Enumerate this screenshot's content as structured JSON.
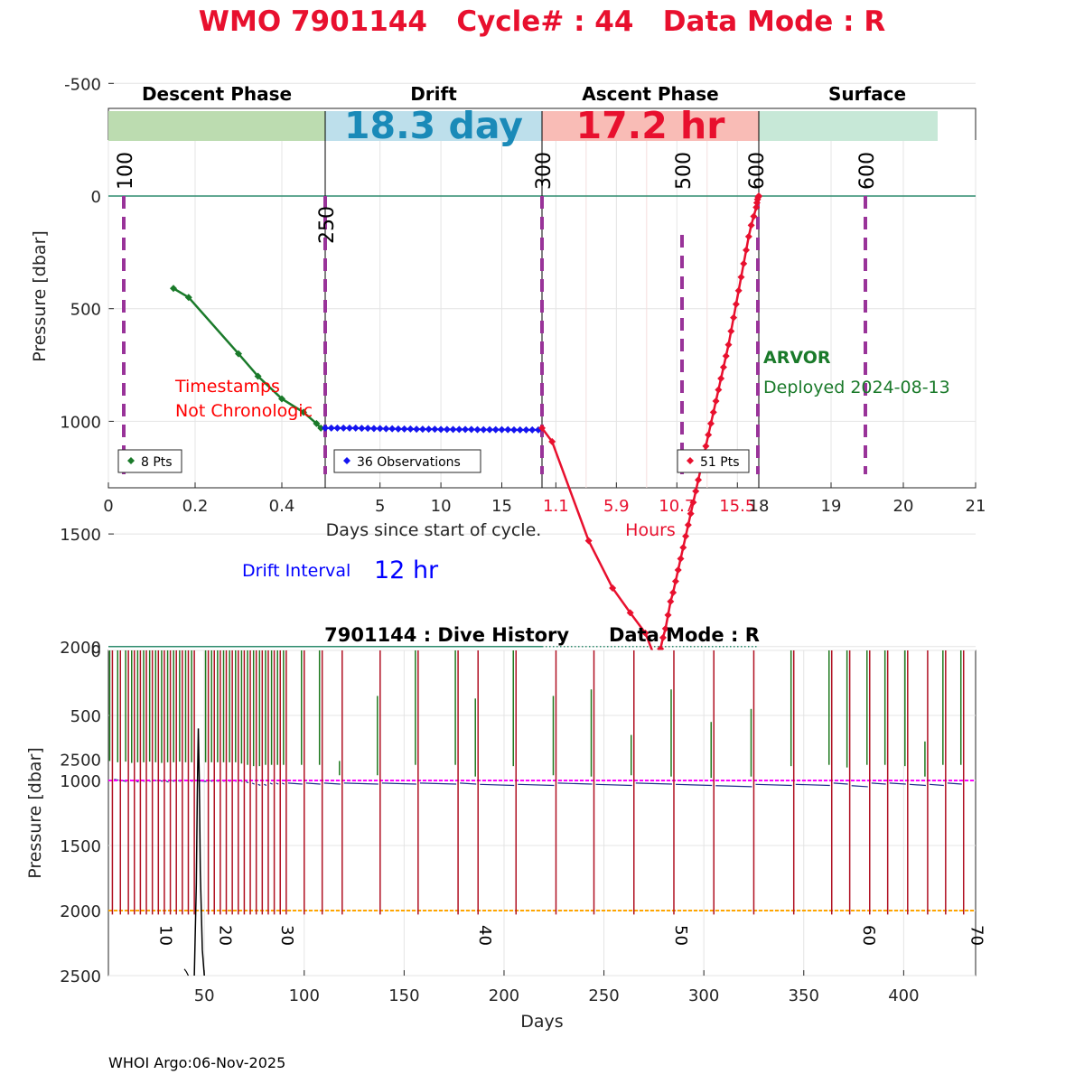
{
  "header": {
    "title": "WMO 7901144   Cycle# : 44   Data Mode : R",
    "title_color": "#e8102e"
  },
  "footer": {
    "credit": "WHOI Argo:06-Nov-2025"
  },
  "chart_data": [
    {
      "type": "line",
      "name": "cycle-profile",
      "ylabel": "Pressure [dbar]",
      "ylim": [
        2600,
        -750
      ],
      "yticks": [
        "-500",
        "0",
        "500",
        "1000",
        "1500",
        "2000",
        "2500"
      ],
      "ytick_values": [
        -500,
        0,
        500,
        1000,
        1500,
        2000,
        2500
      ],
      "grid": true,
      "xlabel_days": "Days since start of cycle.",
      "xlabel_hours": "Hours",
      "hours_color": "#e8102e",
      "phases": [
        {
          "label": "Descent Phase",
          "color": "#bcdcb0",
          "info": ""
        },
        {
          "label": "Drift",
          "color": "#bddfeb",
          "info": "18.3 day",
          "info_color": "#1a8ab8"
        },
        {
          "label": "Ascent Phase",
          "color": "#f9bcb6",
          "info": "17.2 hr",
          "info_color": "#e8102e"
        },
        {
          "label": "Surface",
          "color": "#c7e8d7",
          "info": ""
        }
      ],
      "xticks": {
        "descent": [
          "0",
          "0.2",
          "0.4"
        ],
        "drift": [
          "5",
          "10",
          "15"
        ],
        "ascent_hours": [
          "1.1",
          "5.9",
          "10.7",
          "15.5"
        ],
        "surface": [
          "18",
          "19",
          "20",
          "21"
        ]
      },
      "dashed_markers": [
        "100",
        "250",
        "300",
        "500",
        "600",
        "600"
      ],
      "reference_lines": [
        0,
        2000
      ],
      "descent": {
        "color": "#1a7a2a",
        "legend": "8 Pts",
        "x_days": [
          0.15,
          0.185,
          0.3,
          0.345,
          0.4,
          0.45,
          0.48,
          0.49
        ],
        "pressure": [
          410,
          450,
          700,
          800,
          900,
          960,
          1010,
          1030
        ]
      },
      "drift": {
        "color": "#1414f0",
        "legend": "36 Observations",
        "x_days_start": 0.5,
        "x_days_step": 0.5,
        "pressure": [
          1030,
          1030,
          1030,
          1030,
          1030,
          1030,
          1031,
          1031,
          1032,
          1032,
          1033,
          1033,
          1034,
          1034,
          1034,
          1035,
          1035,
          1035,
          1035,
          1036,
          1036,
          1036,
          1036,
          1036,
          1036,
          1037,
          1037,
          1037,
          1037,
          1037,
          1037,
          1038,
          1038,
          1038,
          1038,
          1038
        ]
      },
      "ascent": {
        "color": "#e8102e",
        "legend": "51 Pts",
        "hours": [
          0,
          0.8,
          3.7,
          5.6,
          7.0,
          8.2,
          8.9,
          9.2,
          9.4,
          9.6,
          9.8,
          10.0,
          10.2,
          10.4,
          10.6,
          10.8,
          11.0,
          11.2,
          11.4,
          11.6,
          11.8,
          12.0,
          12.2,
          12.4,
          12.6,
          12.8,
          13.0,
          13.2,
          13.4,
          13.6,
          13.8,
          14.0,
          14.2,
          14.4,
          14.6,
          14.8,
          15.0,
          15.2,
          15.4,
          15.6,
          15.8,
          16.0,
          16.2,
          16.4,
          16.6,
          16.8,
          17.0,
          17.05,
          17.1,
          17.15,
          17.2
        ],
        "pressure": [
          1030,
          1090,
          1530,
          1740,
          1850,
          1940,
          2040,
          2030,
          2010,
          1960,
          1920,
          1860,
          1800,
          1760,
          1710,
          1660,
          1610,
          1560,
          1510,
          1460,
          1410,
          1360,
          1310,
          1260,
          1210,
          1160,
          1110,
          1060,
          1010,
          960,
          910,
          860,
          810,
          760,
          710,
          660,
          600,
          540,
          480,
          420,
          360,
          300,
          240,
          180,
          130,
          90,
          50,
          30,
          15,
          5,
          0
        ]
      },
      "float_type": "ARVOR",
      "deployed": "Deployed 2024-08-13",
      "warning": [
        "Timestamps",
        "Not Chronologic"
      ],
      "drift_interval_label": "Drift Interval",
      "drift_interval_value": "12 hr"
    },
    {
      "type": "line",
      "name": "dive-history",
      "title": "7901144 : Dive History      Data Mode : R",
      "xlabel": "Days",
      "ylabel": "Pressure [dbar]",
      "xlim": [
        2,
        436
      ],
      "ylim": [
        2500,
        0
      ],
      "xticks": [
        50,
        100,
        150,
        200,
        250,
        300,
        350,
        400
      ],
      "yticks": [
        0,
        500,
        1000,
        1500,
        2000,
        2500
      ],
      "grid": true,
      "park_pressure": 1000,
      "park_color": "#ff00ff",
      "profile_pressure": 2000,
      "profile_color": "#ffa500",
      "profile_line_color": "#b01022",
      "descent_line_color": "#1f7a1f",
      "cycle_labels": [
        {
          "label": "10",
          "day": 27
        },
        {
          "label": "20",
          "day": 57
        },
        {
          "label": "30",
          "day": 88
        },
        {
          "label": "40",
          "day": 187
        },
        {
          "label": "50",
          "day": 285
        },
        {
          "label": "60",
          "day": 379
        },
        {
          "label": "70",
          "day": 433
        }
      ],
      "cycle_days": [
        4,
        8,
        12,
        15,
        18,
        21,
        24,
        27,
        30,
        33,
        36,
        39,
        42,
        45,
        52,
        55,
        58,
        61,
        64,
        67,
        70,
        73,
        76,
        79,
        82,
        85,
        88,
        91,
        100,
        109,
        119,
        138,
        157,
        177,
        187,
        206,
        226,
        245,
        265,
        285,
        305,
        325,
        345,
        364,
        373,
        383,
        392,
        402,
        412,
        421,
        430
      ],
      "descent_tops": [
        0,
        0,
        0,
        0,
        0,
        0,
        0,
        0,
        0,
        0,
        0,
        0,
        0,
        0,
        0,
        0,
        0,
        0,
        0,
        0,
        0,
        0,
        0,
        0,
        0,
        0,
        0,
        0,
        0,
        0,
        850,
        350,
        0,
        0,
        370,
        0,
        350,
        300,
        650,
        300,
        550,
        450,
        0,
        0,
        0,
        0,
        0,
        0,
        700,
        0,
        0
      ],
      "drift_pressures": [
        990,
        1000,
        995,
        1005,
        1000,
        1000,
        995,
        1000,
        1005,
        1000,
        1000,
        995,
        1000,
        1000,
        1000,
        1000,
        1000,
        1000,
        1000,
        1000,
        1010,
        1020,
        1030,
        1030,
        1020,
        1020,
        1020,
        1020,
        1020,
        1020,
        1020,
        1020,
        1020,
        1020,
        1030,
        1030,
        1020,
        1030,
        1020,
        1030,
        1040,
        1030,
        1030,
        1020,
        1040,
        1020,
        1020,
        1030,
        1030,
        1020,
        1020
      ]
    }
  ]
}
